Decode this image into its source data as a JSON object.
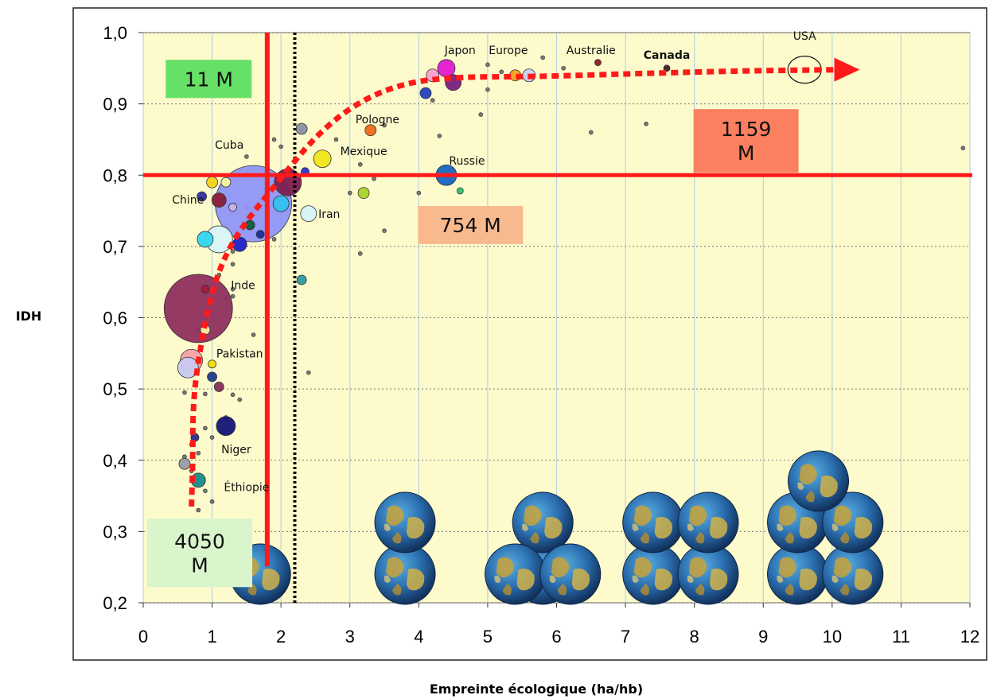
{
  "chart_data": {
    "type": "scatter",
    "title": "",
    "xlabel": "Empreinte écologique (ha/hb)",
    "ylabel": "IDH",
    "xlim": [
      0,
      12
    ],
    "ylim": [
      0.2,
      1.0
    ],
    "x_ticks": [
      "0",
      "1",
      "2",
      "3",
      "4",
      "5",
      "6",
      "7",
      "8",
      "9",
      "10",
      "11",
      "12"
    ],
    "y_ticks": [
      "0,2",
      "0,3",
      "0,4",
      "0,5",
      "0,6",
      "0,7",
      "0,8",
      "0,9",
      "1,0"
    ],
    "grid": true,
    "colors": {
      "background": "#fdfbcc",
      "grid": "#b8d4e3",
      "threshold": "#ff1a1a",
      "trend": "#ff1a1a",
      "biocapacity": "#000000"
    },
    "thresholds": [
      {
        "axis": "x",
        "value": 1.8,
        "style": "solid",
        "color": "#ff1a1a"
      },
      {
        "axis": "y",
        "value": 0.8,
        "style": "solid",
        "color": "#ff1a1a"
      },
      {
        "axis": "x",
        "value": 2.2,
        "style": "dotted",
        "color": "#000000"
      }
    ],
    "population_boxes": [
      {
        "text": [
          "11 M"
        ],
        "x": 0.95,
        "y": 0.935,
        "color": "#66e066"
      },
      {
        "text": [
          "1159",
          "M"
        ],
        "x": 8.75,
        "y": 0.848,
        "color": "#fa8060"
      },
      {
        "text": [
          "754 M"
        ],
        "x": 4.75,
        "y": 0.73,
        "color": "#f9b98f"
      },
      {
        "text": [
          "4050",
          "M"
        ],
        "x": 0.82,
        "y": 0.27,
        "color": "#d8f5cc"
      }
    ],
    "country_labels": [
      {
        "name": "Japon",
        "x": 4.6,
        "y": 0.97,
        "bold": false
      },
      {
        "name": "Europe",
        "x": 5.3,
        "y": 0.97,
        "bold": false
      },
      {
        "name": "Australie",
        "x": 6.5,
        "y": 0.97,
        "bold": false
      },
      {
        "name": "Canada",
        "x": 7.6,
        "y": 0.963,
        "bold": true
      },
      {
        "name": "USA",
        "x": 9.6,
        "y": 0.99,
        "bold": false
      },
      {
        "name": "Pologne",
        "x": 3.4,
        "y": 0.873,
        "bold": false
      },
      {
        "name": "Cuba",
        "x": 1.25,
        "y": 0.837,
        "bold": false
      },
      {
        "name": "Mexique",
        "x": 3.2,
        "y": 0.828,
        "bold": false
      },
      {
        "name": "Russie",
        "x": 4.7,
        "y": 0.815,
        "bold": false
      },
      {
        "name": "Chine",
        "x": 0.65,
        "y": 0.76,
        "bold": false
      },
      {
        "name": "Iran",
        "x": 2.7,
        "y": 0.74,
        "bold": false
      },
      {
        "name": "Inde",
        "x": 1.45,
        "y": 0.64,
        "bold": false
      },
      {
        "name": "Pakistan",
        "x": 1.4,
        "y": 0.544,
        "bold": false
      },
      {
        "name": "Niger",
        "x": 1.35,
        "y": 0.41,
        "bold": false
      },
      {
        "name": "Éthiopie",
        "x": 1.5,
        "y": 0.357,
        "bold": false
      }
    ],
    "bubbles": [
      {
        "x": 1.6,
        "y": 0.76,
        "r": 48,
        "color": "#8f95f5"
      },
      {
        "x": 0.8,
        "y": 0.613,
        "r": 43,
        "color": "#8e2f5d"
      },
      {
        "x": 1.1,
        "y": 0.71,
        "r": 17,
        "color": "#d9f5f9"
      },
      {
        "x": 0.9,
        "y": 0.71,
        "r": 10,
        "color": "#33d6f0"
      },
      {
        "x": 1.4,
        "y": 0.703,
        "r": 9,
        "color": "#1c22c8"
      },
      {
        "x": 1.1,
        "y": 0.765,
        "r": 9,
        "color": "#8a1b3a"
      },
      {
        "x": 0.85,
        "y": 0.77,
        "r": 6,
        "color": "#2e2ea8"
      },
      {
        "x": 1.0,
        "y": 0.79,
        "r": 7,
        "color": "#f7d21a"
      },
      {
        "x": 1.2,
        "y": 0.79,
        "r": 6,
        "color": "#f5f5a0"
      },
      {
        "x": 1.55,
        "y": 0.73,
        "r": 6,
        "color": "#0e5c3a"
      },
      {
        "x": 1.7,
        "y": 0.717,
        "r": 5,
        "color": "#1a2d9a"
      },
      {
        "x": 1.3,
        "y": 0.755,
        "r": 5,
        "color": "#ccb3e8"
      },
      {
        "x": 2.1,
        "y": 0.79,
        "r": 17,
        "color": "#7a1f4e"
      },
      {
        "x": 2.0,
        "y": 0.76,
        "r": 10,
        "color": "#33c0ef"
      },
      {
        "x": 2.4,
        "y": 0.746,
        "r": 10,
        "color": "#d6f2f8"
      },
      {
        "x": 2.3,
        "y": 0.865,
        "r": 7,
        "color": "#8890a0"
      },
      {
        "x": 2.35,
        "y": 0.805,
        "r": 5,
        "color": "#2a2fd0"
      },
      {
        "x": 2.6,
        "y": 0.823,
        "r": 11,
        "color": "#f0e619"
      },
      {
        "x": 3.3,
        "y": 0.863,
        "r": 7,
        "color": "#ef6a16"
      },
      {
        "x": 3.2,
        "y": 0.775,
        "r": 7,
        "color": "#a8d52a"
      },
      {
        "x": 4.4,
        "y": 0.8,
        "r": 13,
        "color": "#1565c0"
      },
      {
        "x": 4.6,
        "y": 0.778,
        "r": 4,
        "color": "#2ec46c"
      },
      {
        "x": 4.4,
        "y": 0.95,
        "r": 11,
        "color": "#e31ad0"
      },
      {
        "x": 4.2,
        "y": 0.94,
        "r": 8,
        "color": "#f5a0d0"
      },
      {
        "x": 4.5,
        "y": 0.93,
        "r": 10,
        "color": "#7a1f7e"
      },
      {
        "x": 4.1,
        "y": 0.915,
        "r": 7,
        "color": "#2240c0"
      },
      {
        "x": 5.4,
        "y": 0.94,
        "r": 7,
        "color": "#f5a020"
      },
      {
        "x": 5.6,
        "y": 0.94,
        "r": 8,
        "color": "#c8d0f0"
      },
      {
        "x": 6.6,
        "y": 0.958,
        "r": 4,
        "color": "#8a1b1b"
      },
      {
        "x": 7.6,
        "y": 0.95,
        "r": 4,
        "color": "#3b2020"
      },
      {
        "x": 2.3,
        "y": 0.653,
        "r": 6,
        "color": "#2a9aa0"
      },
      {
        "x": 0.7,
        "y": 0.54,
        "r": 14,
        "color": "#f5a0a8"
      },
      {
        "x": 0.65,
        "y": 0.53,
        "r": 13,
        "color": "#c8c8f0"
      },
      {
        "x": 0.9,
        "y": 0.583,
        "r": 6,
        "color": "#f7f0a0"
      },
      {
        "x": 1.0,
        "y": 0.535,
        "r": 5,
        "color": "#f0e000"
      },
      {
        "x": 1.0,
        "y": 0.517,
        "r": 6,
        "color": "#1e3a8a"
      },
      {
        "x": 1.1,
        "y": 0.503,
        "r": 6,
        "color": "#8a2e5a"
      },
      {
        "x": 1.2,
        "y": 0.448,
        "r": 12,
        "color": "#141478"
      },
      {
        "x": 0.8,
        "y": 0.372,
        "r": 9,
        "color": "#178a8a"
      },
      {
        "x": 0.6,
        "y": 0.395,
        "r": 7,
        "color": "#9a9aa8"
      },
      {
        "x": 0.75,
        "y": 0.432,
        "r": 5,
        "color": "#2a2a8a"
      },
      {
        "x": 0.9,
        "y": 0.64,
        "r": 5,
        "color": "#a01a40"
      }
    ],
    "small_dots": [
      [
        1.5,
        0.826
      ],
      [
        1.9,
        0.85
      ],
      [
        2.0,
        0.84
      ],
      [
        2.8,
        0.85
      ],
      [
        3.15,
        0.815
      ],
      [
        3.35,
        0.795
      ],
      [
        3.5,
        0.87
      ],
      [
        3.0,
        0.775
      ],
      [
        3.15,
        0.69
      ],
      [
        3.5,
        0.722
      ],
      [
        4.0,
        0.775
      ],
      [
        4.2,
        0.905
      ],
      [
        4.3,
        0.855
      ],
      [
        4.9,
        0.885
      ],
      [
        5.0,
        0.92
      ],
      [
        5.0,
        0.955
      ],
      [
        5.2,
        0.945
      ],
      [
        5.8,
        0.965
      ],
      [
        6.1,
        0.95
      ],
      [
        6.5,
        0.86
      ],
      [
        7.3,
        0.872
      ],
      [
        11.9,
        0.838
      ],
      [
        2.4,
        0.523
      ],
      [
        1.6,
        0.576
      ],
      [
        1.3,
        0.693
      ],
      [
        1.3,
        0.675
      ],
      [
        1.5,
        0.754
      ],
      [
        1.1,
        0.66
      ],
      [
        1.3,
        0.64
      ],
      [
        1.3,
        0.63
      ],
      [
        1.2,
        0.627
      ],
      [
        0.8,
        0.583
      ],
      [
        0.6,
        0.495
      ],
      [
        0.9,
        0.493
      ],
      [
        1.3,
        0.492
      ],
      [
        1.4,
        0.485
      ],
      [
        0.9,
        0.445
      ],
      [
        1.0,
        0.432
      ],
      [
        1.2,
        0.46
      ],
      [
        0.8,
        0.41
      ],
      [
        0.6,
        0.405
      ],
      [
        0.7,
        0.422
      ],
      [
        0.9,
        0.357
      ],
      [
        1.0,
        0.342
      ],
      [
        0.8,
        0.33
      ],
      [
        1.1,
        0.311
      ],
      [
        0.7,
        0.385
      ],
      [
        1.9,
        0.71
      ],
      [
        2.2,
        0.79
      ],
      [
        2.1,
        0.77
      ]
    ],
    "trend_curve": [
      [
        0.7,
        0.335
      ],
      [
        0.72,
        0.4
      ],
      [
        0.72,
        0.47
      ],
      [
        0.78,
        0.53
      ],
      [
        0.95,
        0.62
      ],
      [
        1.15,
        0.68
      ],
      [
        1.45,
        0.73
      ],
      [
        1.95,
        0.79
      ],
      [
        2.5,
        0.855
      ],
      [
        3.1,
        0.902
      ],
      [
        3.8,
        0.93
      ],
      [
        4.6,
        0.938
      ],
      [
        5.6,
        0.938
      ],
      [
        7.0,
        0.942
      ],
      [
        8.5,
        0.946
      ],
      [
        10.1,
        0.948
      ]
    ],
    "earth_stacks": [
      {
        "x": 1.7,
        "count": 1
      },
      {
        "x": 3.8,
        "count": 2
      },
      {
        "x": 5.8,
        "count": 2
      },
      {
        "x": 7.4,
        "count": 2
      },
      {
        "x": 8.2,
        "count": 2
      },
      {
        "x": 9.5,
        "count": 2
      },
      {
        "x": 10.3,
        "count": 2
      },
      {
        "x": 9.8,
        "count": 1,
        "level": 2
      },
      {
        "x": 5.4,
        "count": 1
      },
      {
        "x": 6.2,
        "count": 1
      }
    ]
  }
}
